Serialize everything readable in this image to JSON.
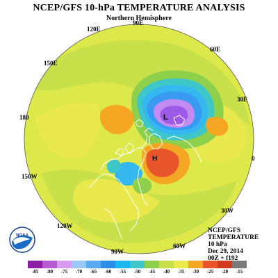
{
  "header": {
    "title": "NCEP/GFS 10-hPa TEMPERATURE ANALYSIS",
    "subtitle": "Northern Hemisphere"
  },
  "map": {
    "longitude_labels": {
      "lon_90E": "90E",
      "lon_120E": "120E",
      "lon_60E": "60E",
      "lon_150E": "150E",
      "lon_30E": "30E",
      "lon_180": "180",
      "lon_0": "0",
      "lon_150W": "150W",
      "lon_30W": "30W",
      "lon_120W": "120W",
      "lon_60W": "60W",
      "lon_90W": "90W"
    },
    "low_label": "L",
    "high_label": "H",
    "colors": {
      "background_fill": "#dde84a",
      "yellow": "#e9e84c",
      "green_yellow": "#c8e04a",
      "green": "#8ecf4c",
      "teal": "#3ec6c8",
      "cyan": "#35b8f0",
      "blue": "#3a9af2",
      "purple_light": "#c48cf0",
      "purple": "#9c5ae6",
      "orange": "#f5a623",
      "orange_dark": "#f08a1c",
      "red_orange": "#e8552a",
      "coastline": "#ffffff"
    }
  },
  "info": {
    "line1": "NCEP/GFS",
    "line2": "TEMPERATURE",
    "line3": "10 hPa",
    "line4": "Dec 29, 2014",
    "line5": "00Z + f192"
  },
  "logo": {
    "text": "NOAA"
  },
  "legend": {
    "labels": [
      "-85",
      "-80",
      "-75",
      "-70",
      "-65",
      "-60",
      "-55",
      "-50",
      "-45",
      "-40",
      "-35",
      "-30",
      "-25",
      "-20",
      "-15"
    ],
    "colors": [
      "#8c1fa6",
      "#b65ad2",
      "#d79bf0",
      "#9ac8f5",
      "#5aaaf3",
      "#2c8ee6",
      "#1bb7f0",
      "#3ec6c8",
      "#8ecf4c",
      "#c8e04a",
      "#ebea4c",
      "#f5a623",
      "#e8552a",
      "#d23c1e",
      "#7a7a7a"
    ]
  }
}
